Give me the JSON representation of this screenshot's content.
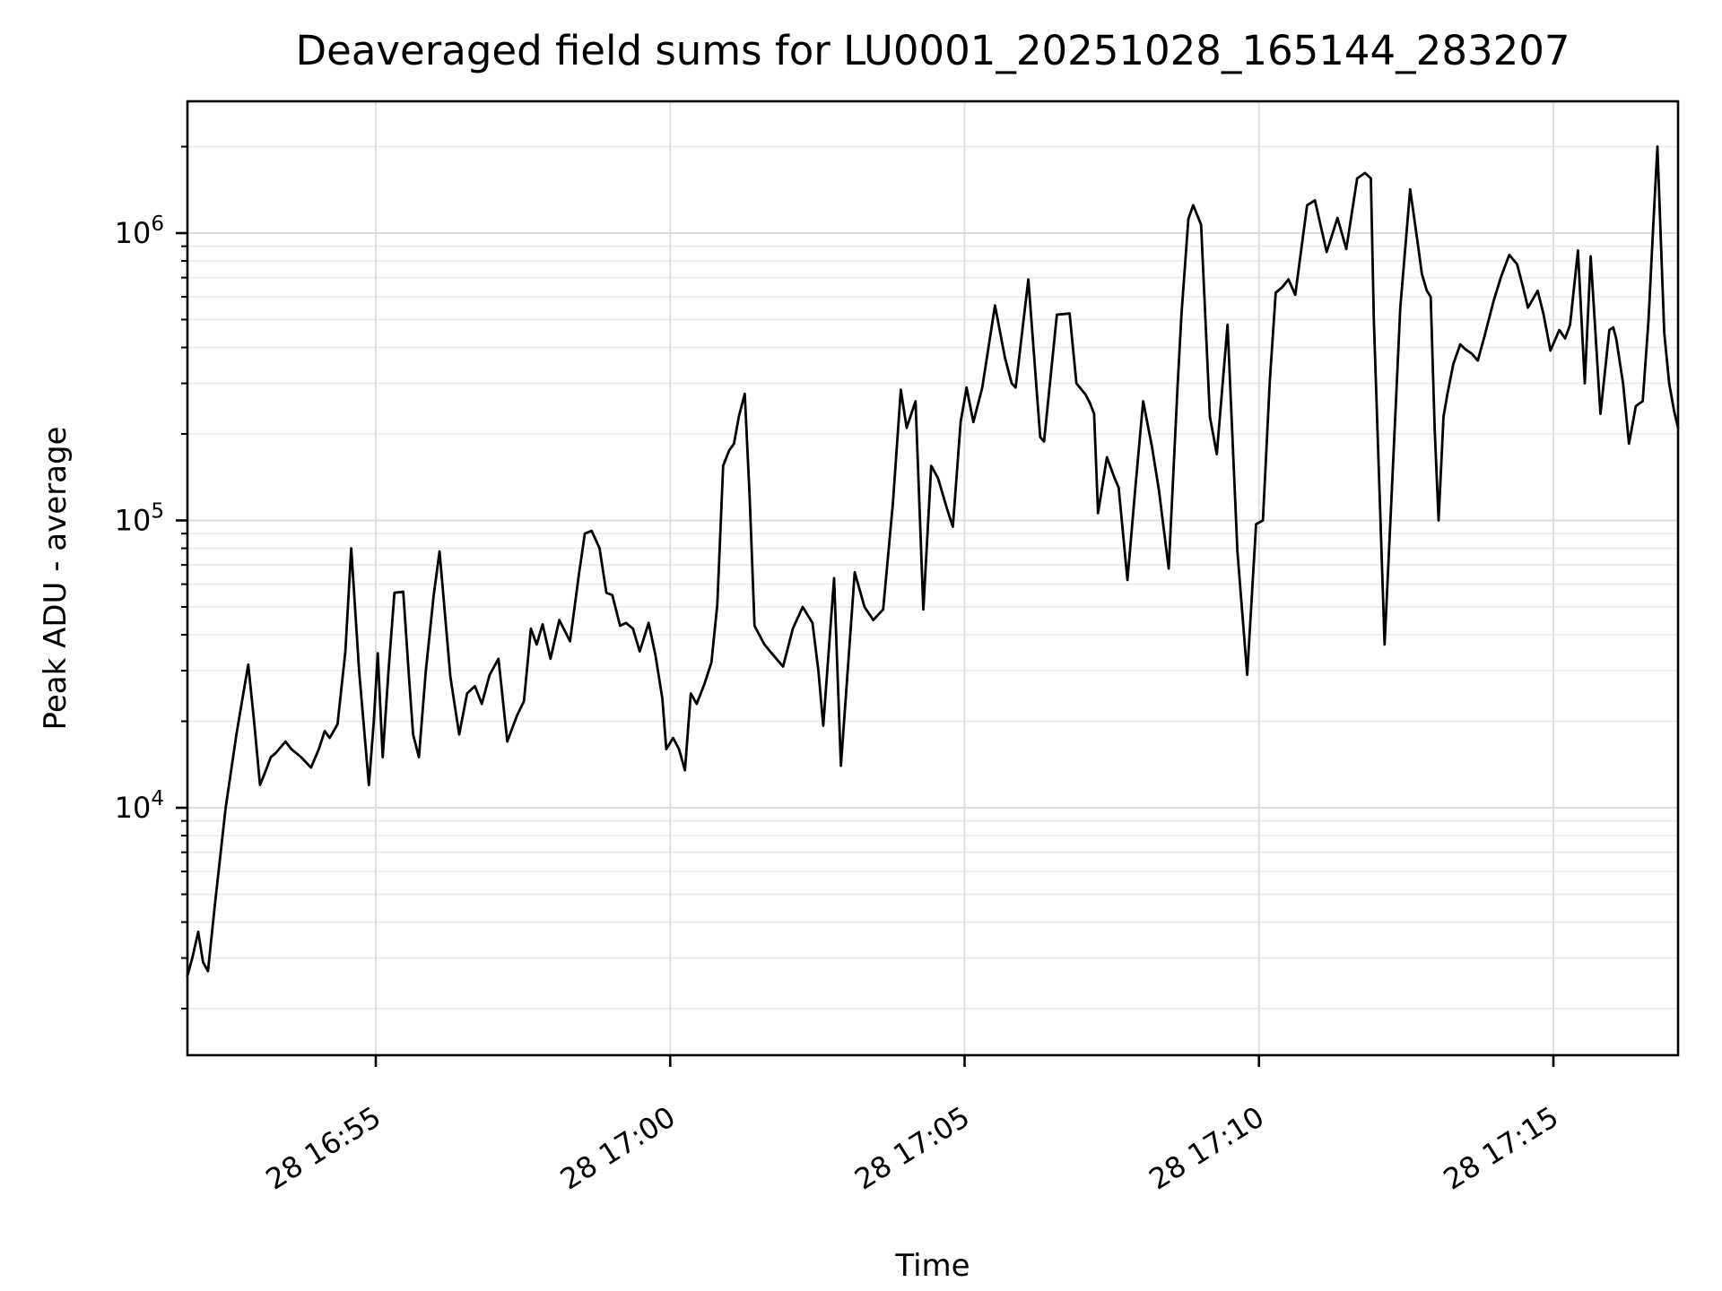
{
  "figure": {
    "background": "#ffffff",
    "text_color": "#000000"
  },
  "chart_data": {
    "type": "line",
    "title": "Deaveraged field sums for LU0001_20251028_165144_283207",
    "xlabel": "Time",
    "ylabel": "Peak ADU - average",
    "legend": null,
    "line_color": "#000000",
    "major_grid_color": "#dedede",
    "minor_grid_color": "#eaeaea",
    "x_axis": {
      "kind": "time",
      "grid": true,
      "tick_labels": [
        "28 16:55",
        "28 17:00",
        "28 17:05",
        "28 17:10",
        "28 17:15"
      ],
      "tick_times": [
        "16:55:00",
        "17:00:00",
        "17:05:00",
        "17:10:00",
        "17:15:00"
      ],
      "range_times": [
        "16:51:48",
        "17:17:10"
      ]
    },
    "y_axis": {
      "kind": "log",
      "grid": true,
      "minor_grid": true,
      "tick_labels": [
        "10^4",
        "10^5",
        "10^6"
      ],
      "tick_values": [
        10000,
        100000,
        1000000
      ],
      "range": [
        1380,
        2870000
      ]
    },
    "series": [
      {
        "name": "Peak ADU - average",
        "times": [
          "16:51:48",
          "16:51:53",
          "16:51:59",
          "16:52:04",
          "16:52:09",
          "16:52:16",
          "16:52:27",
          "16:52:38",
          "16:52:45",
          "16:52:50",
          "16:52:56",
          "16:53:02",
          "16:53:08",
          "16:53:13",
          "16:53:18",
          "16:53:28",
          "16:53:34",
          "16:53:44",
          "16:53:54",
          "16:54:02",
          "16:54:08",
          "16:54:13",
          "16:54:21",
          "16:54:29",
          "16:54:35",
          "16:54:43",
          "16:54:53",
          "16:54:58",
          "16:55:02",
          "16:55:07",
          "16:55:13",
          "16:55:19",
          "16:55:28",
          "16:55:34",
          "16:55:38",
          "16:55:44",
          "16:55:51",
          "16:55:59",
          "16:56:05",
          "16:56:11",
          "16:56:16",
          "16:56:25",
          "16:56:33",
          "16:56:41",
          "16:56:48",
          "16:56:56",
          "16:57:05",
          "16:57:14",
          "16:57:24",
          "16:57:31",
          "16:57:38",
          "16:57:44",
          "16:57:50",
          "16:57:58",
          "16:58:07",
          "16:58:18",
          "16:58:27",
          "16:58:33",
          "16:58:40",
          "16:58:48",
          "16:58:55",
          "16:59:01",
          "16:59:09",
          "16:59:15",
          "16:59:22",
          "16:59:29",
          "16:59:38",
          "16:59:45",
          "16:59:52",
          "16:59:56",
          "17:00:03",
          "17:00:09",
          "17:00:15",
          "17:00:21",
          "17:00:27",
          "17:00:35",
          "17:00:42",
          "17:00:48",
          "17:00:54",
          "17:01:00",
          "17:01:05",
          "17:01:10",
          "17:01:16",
          "17:01:21",
          "17:01:26",
          "17:01:36",
          "17:01:45",
          "17:01:55",
          "17:02:05",
          "17:02:15",
          "17:02:25",
          "17:02:31",
          "17:02:36",
          "17:02:47",
          "17:02:54",
          "17:03:08",
          "17:03:18",
          "17:03:27",
          "17:03:37",
          "17:03:47",
          "17:03:55",
          "17:04:01",
          "17:04:10",
          "17:04:18",
          "17:04:26",
          "17:04:33",
          "17:04:42",
          "17:04:48",
          "17:04:56",
          "17:05:02",
          "17:05:09",
          "17:05:18",
          "17:05:31",
          "17:05:41",
          "17:05:48",
          "17:05:52",
          "17:06:05",
          "17:06:17",
          "17:06:21",
          "17:06:34",
          "17:06:47",
          "17:06:54",
          "17:07:03",
          "17:07:08",
          "17:07:12",
          "17:07:16",
          "17:07:25",
          "17:07:33",
          "17:07:37",
          "17:07:46",
          "17:07:54",
          "17:08:02",
          "17:08:11",
          "17:08:18",
          "17:08:28",
          "17:08:37",
          "17:08:41",
          "17:08:48",
          "17:08:53",
          "17:09:01",
          "17:09:10",
          "17:09:17",
          "17:09:28",
          "17:09:38",
          "17:09:48",
          "17:09:57",
          "17:10:04",
          "17:10:11",
          "17:10:17",
          "17:10:24",
          "17:10:30",
          "17:10:37",
          "17:10:49",
          "17:10:57",
          "17:11:09",
          "17:11:20",
          "17:11:29",
          "17:11:40",
          "17:11:48",
          "17:11:54",
          "17:11:57",
          "17:12:08",
          "17:12:15",
          "17:12:24",
          "17:12:34",
          "17:12:42",
          "17:12:46",
          "17:12:51",
          "17:12:55",
          "17:12:59",
          "17:13:03",
          "17:13:08",
          "17:13:12",
          "17:13:18",
          "17:13:25",
          "17:13:30",
          "17:13:37",
          "17:13:43",
          "17:13:50",
          "17:13:59",
          "17:14:07",
          "17:14:15",
          "17:14:23",
          "17:14:29",
          "17:14:34",
          "17:14:44",
          "17:14:50",
          "17:14:57",
          "17:15:06",
          "17:15:12",
          "17:15:17",
          "17:15:25",
          "17:15:32",
          "17:15:38",
          "17:15:48",
          "17:15:57",
          "17:16:01",
          "17:16:04",
          "17:16:11",
          "17:16:17",
          "17:16:24",
          "17:16:31",
          "17:16:37",
          "17:16:42",
          "17:16:46",
          "17:16:53",
          "17:16:58",
          "17:17:03",
          "17:17:07"
        ],
        "values": [
          2600,
          3000,
          3700,
          2900,
          2700,
          4600,
          10000,
          18000,
          25000,
          31500,
          20000,
          12000,
          13500,
          15000,
          15500,
          17000,
          16000,
          15000,
          13800,
          16000,
          18500,
          17500,
          19500,
          35000,
          80000,
          30000,
          12000,
          20000,
          34500,
          15000,
          30000,
          56000,
          56500,
          28000,
          18000,
          15000,
          30000,
          55000,
          78000,
          45000,
          28500,
          18000,
          25000,
          26500,
          23000,
          29000,
          33000,
          17000,
          21000,
          23500,
          42000,
          37000,
          43500,
          33000,
          45000,
          38000,
          65000,
          90000,
          92000,
          80000,
          56000,
          55000,
          43000,
          44000,
          42000,
          35000,
          44000,
          34000,
          24000,
          16000,
          17500,
          16000,
          13500,
          25000,
          23000,
          27000,
          32000,
          51000,
          155000,
          175000,
          185000,
          230000,
          276000,
          120000,
          43000,
          37000,
          34000,
          31000,
          42000,
          50000,
          44000,
          30000,
          19300,
          63000,
          14000,
          66000,
          50000,
          45000,
          49000,
          115000,
          285000,
          210000,
          260000,
          49000,
          155000,
          140000,
          110000,
          95000,
          220000,
          290000,
          220000,
          290000,
          560000,
          370000,
          300000,
          290000,
          690000,
          195000,
          188000,
          520000,
          525000,
          300000,
          275000,
          255000,
          235000,
          106000,
          166000,
          140000,
          130000,
          62000,
          130000,
          260000,
          180000,
          128000,
          68000,
          290000,
          520000,
          1120000,
          1250000,
          1070000,
          230000,
          170000,
          480000,
          78000,
          29000,
          97000,
          100000,
          305000,
          620000,
          650000,
          690000,
          610000,
          1250000,
          1300000,
          860000,
          1130000,
          880000,
          1550000,
          1620000,
          1550000,
          500000,
          37000,
          120000,
          550000,
          1420000,
          910000,
          720000,
          630000,
          600000,
          210000,
          100000,
          230000,
          275000,
          350000,
          410000,
          395000,
          380000,
          360000,
          440000,
          580000,
          710000,
          840000,
          780000,
          650000,
          550000,
          630000,
          520000,
          390000,
          460000,
          430000,
          480000,
          870000,
          300000,
          830000,
          235000,
          460000,
          470000,
          430000,
          300000,
          185000,
          250000,
          260000,
          500000,
          1100000,
          2000000,
          450000,
          300000,
          240000,
          210000
        ]
      }
    ]
  }
}
